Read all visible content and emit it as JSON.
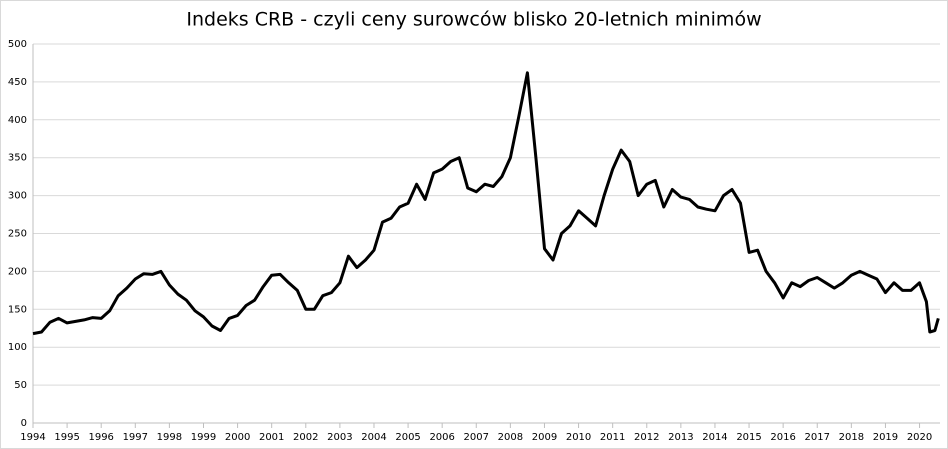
{
  "chart_data": {
    "type": "line",
    "title": "Indeks CRB - czyli ceny surowców blisko 20-letnich minimów",
    "x": [
      1994,
      1994.25,
      1994.5,
      1994.75,
      1995,
      1995.25,
      1995.5,
      1995.75,
      1996,
      1996.25,
      1996.5,
      1996.75,
      1997,
      1997.25,
      1997.5,
      1997.75,
      1998,
      1998.25,
      1998.5,
      1998.75,
      1999,
      1999.25,
      1999.5,
      1999.75,
      2000,
      2000.25,
      2000.5,
      2000.75,
      2001,
      2001.25,
      2001.5,
      2001.75,
      2002,
      2002.25,
      2002.5,
      2002.75,
      2003,
      2003.25,
      2003.5,
      2003.75,
      2004,
      2004.25,
      2004.5,
      2004.75,
      2005,
      2005.25,
      2005.5,
      2005.75,
      2006,
      2006.25,
      2006.5,
      2006.75,
      2007,
      2007.25,
      2007.5,
      2007.75,
      2008,
      2008.25,
      2008.5,
      2008.75,
      2009,
      2009.25,
      2009.5,
      2009.75,
      2010,
      2010.25,
      2010.5,
      2010.75,
      2011,
      2011.25,
      2011.5,
      2011.75,
      2012,
      2012.25,
      2012.5,
      2012.75,
      2013,
      2013.25,
      2013.5,
      2013.75,
      2014,
      2014.25,
      2014.5,
      2014.75,
      2015,
      2015.25,
      2015.5,
      2015.75,
      2016,
      2016.25,
      2016.5,
      2016.75,
      2017,
      2017.25,
      2017.5,
      2017.75,
      2018,
      2018.25,
      2018.5,
      2018.75,
      2019,
      2019.25,
      2019.5,
      2019.75,
      2020,
      2020.2,
      2020.3,
      2020.45,
      2020.55
    ],
    "series": [
      {
        "name": "CRB",
        "color": "#000000",
        "values": [
          118,
          120,
          133,
          138,
          132,
          134,
          136,
          139,
          138,
          148,
          168,
          178,
          190,
          197,
          196,
          200,
          182,
          170,
          162,
          148,
          140,
          128,
          122,
          138,
          142,
          155,
          162,
          180,
          195,
          196,
          185,
          175,
          150,
          150,
          168,
          172,
          185,
          220,
          205,
          215,
          228,
          265,
          270,
          285,
          290,
          315,
          295,
          330,
          335,
          345,
          350,
          310,
          305,
          315,
          312,
          325,
          350,
          405,
          462,
          350,
          230,
          215,
          250,
          260,
          280,
          270,
          260,
          300,
          335,
          360,
          345,
          300,
          315,
          320,
          285,
          308,
          298,
          295,
          285,
          282,
          280,
          300,
          308,
          290,
          225,
          228,
          200,
          185,
          165,
          185,
          180,
          188,
          192,
          185,
          178,
          185,
          195,
          200,
          195,
          190,
          172,
          185,
          175,
          175,
          185,
          160,
          120,
          122,
          138
        ]
      }
    ],
    "xlim": [
      1994,
      2020.6
    ],
    "ylim": [
      0,
      500
    ],
    "xticks": [
      1994,
      1995,
      1996,
      1997,
      1998,
      1999,
      2000,
      2001,
      2002,
      2003,
      2004,
      2005,
      2006,
      2007,
      2008,
      2009,
      2010,
      2011,
      2012,
      2013,
      2014,
      2015,
      2016,
      2017,
      2018,
      2019,
      2020
    ],
    "yticks": [
      0,
      50,
      100,
      150,
      200,
      250,
      300,
      350,
      400,
      450,
      500
    ],
    "grid": true
  }
}
